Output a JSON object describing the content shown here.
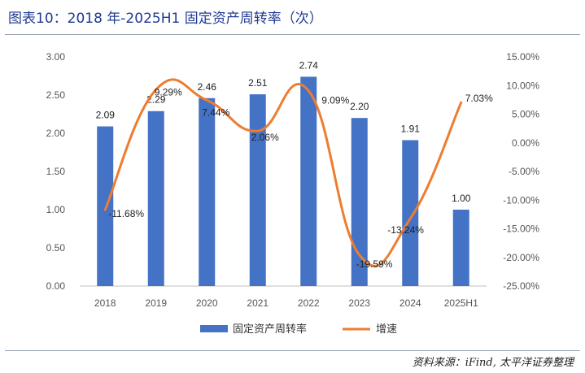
{
  "title": "图表10：2018 年-2025H1 固定资产周转率（次）",
  "source": "资料来源：iFind, 太平洋证券整理",
  "colors": {
    "bar": "#4472c4",
    "line": "#ed7d31",
    "title": "#1f3a93"
  },
  "chart_data": {
    "type": "bar",
    "categories": [
      "2018",
      "2019",
      "2020",
      "2021",
      "2022",
      "2023",
      "2024",
      "2025H1"
    ],
    "series": [
      {
        "name": "固定资产周转率",
        "type": "bar",
        "axis": "left",
        "values": [
          2.09,
          2.29,
          2.46,
          2.51,
          2.74,
          2.2,
          1.91,
          1.0
        ],
        "labels": [
          "2.09",
          "2.29",
          "2.46",
          "2.51",
          "2.74",
          "2.20",
          "1.91",
          "1.00"
        ]
      },
      {
        "name": "增速",
        "type": "line",
        "axis": "right",
        "smooth": true,
        "values": [
          -11.68,
          9.29,
          7.44,
          2.06,
          9.09,
          -19.59,
          -13.24,
          7.03
        ],
        "labels": [
          "-11.68%",
          "9.29%",
          "7.44%",
          "2.06%",
          "9.09%",
          "-19.59%",
          "-13.24%",
          "7.03%"
        ]
      }
    ],
    "y_left": {
      "min": 0,
      "max": 3,
      "ticks": [
        "0.00",
        "0.50",
        "1.00",
        "1.50",
        "2.00",
        "2.50",
        "3.00"
      ]
    },
    "y_right": {
      "min": -25,
      "max": 15,
      "ticks": [
        "-25.00%",
        "-20.00%",
        "-15.00%",
        "-10.00%",
        "-5.00%",
        "0.00%",
        "5.00%",
        "10.00%",
        "15.00%"
      ]
    },
    "legend": {
      "position": "bottom",
      "items": [
        "固定资产周转率",
        "增速"
      ]
    },
    "grid": false
  }
}
